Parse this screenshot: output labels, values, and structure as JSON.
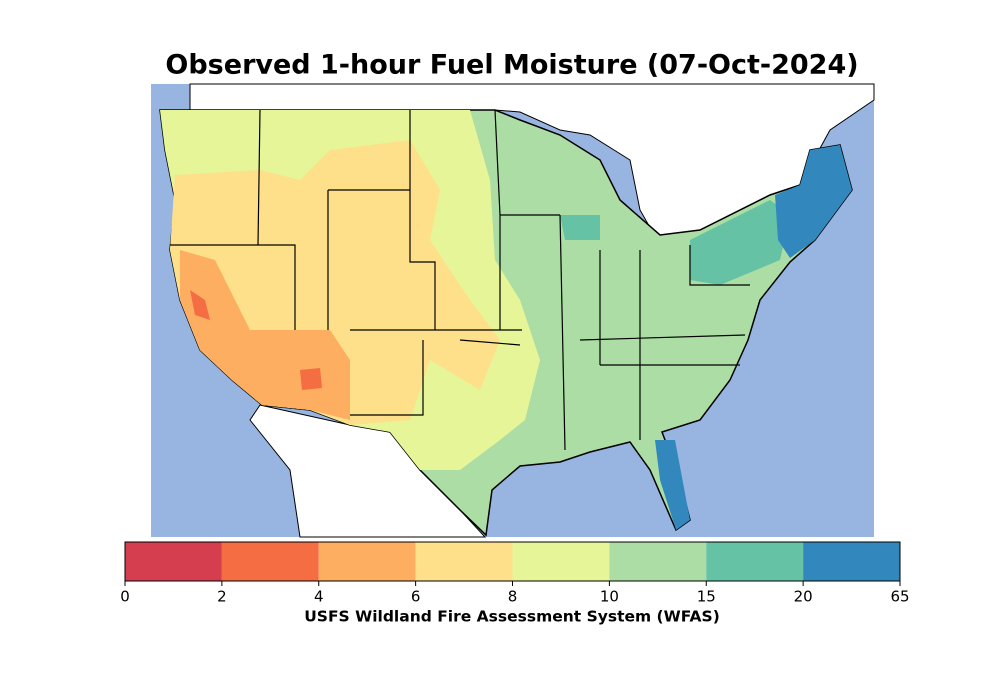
{
  "title": "Observed 1-hour Fuel Moisture (07-Oct-2024)",
  "colorbar": {
    "label": "USFS Wildland Fire Assessment System (WFAS)",
    "bounds": [
      0,
      2,
      4,
      6,
      8,
      10,
      15,
      20,
      65
    ],
    "colors": [
      "#d53e4f",
      "#f46d43",
      "#fdae61",
      "#fee08b",
      "#e6f598",
      "#abdda4",
      "#66c2a5",
      "#3288bd"
    ]
  }
}
